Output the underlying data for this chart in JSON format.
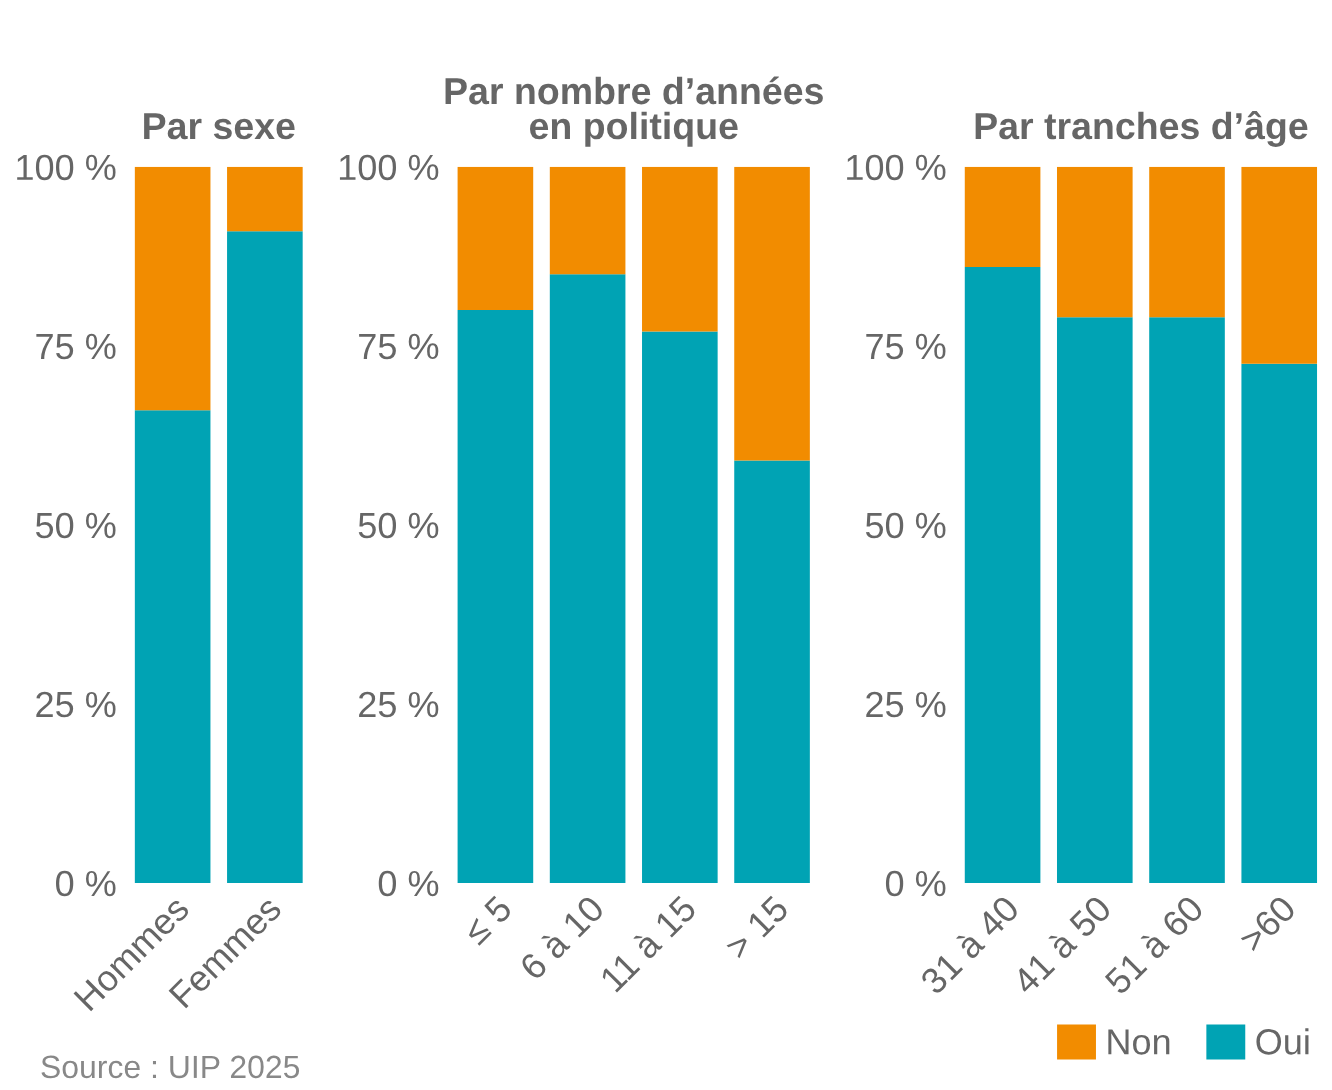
{
  "chart_data": [
    {
      "type": "bar",
      "title": "Par sexe",
      "categories": [
        "Hommes",
        "Femmes"
      ],
      "stacked": true,
      "series": [
        {
          "color": "#00a3b4",
          "values": [
            66,
            91
          ]
        },
        {
          "color": "#f28c00",
          "values": [
            34,
            9
          ]
        }
      ],
      "ylim": [
        0,
        100
      ],
      "yticks": [
        {
          "value": 0,
          "label": "0 %"
        },
        {
          "value": 25,
          "label": "25 %"
        },
        {
          "value": 50,
          "label": "50 %"
        },
        {
          "value": 75,
          "label": "75 %"
        },
        {
          "value": 100,
          "label": "100 %"
        }
      ],
      "annotations": [
        "Source : UIP 2025"
      ]
    },
    {
      "type": "bar",
      "title": "Par nombre d’années\nen politique",
      "categories": [
        "≤ 5",
        "6 à 10",
        "11 à 15",
        "> 15"
      ],
      "stacked": true,
      "series": [
        {
          "color": "#00a3b4",
          "values": [
            80,
            85,
            77,
            59
          ]
        },
        {
          "color": "#f28c00",
          "values": [
            20,
            15,
            23,
            41
          ]
        }
      ],
      "ylim": [
        0,
        100
      ],
      "yticks": [
        {
          "value": 0,
          "label": "0 %"
        },
        {
          "value": 25,
          "label": "25 %"
        },
        {
          "value": 50,
          "label": "50 %"
        },
        {
          "value": 75,
          "label": "75 %"
        },
        {
          "value": 100,
          "label": "100 %"
        }
      ]
    },
    {
      "type": "bar",
      "title": "Par tranches d’âge",
      "categories": [
        "31 à 40",
        "41 à 50",
        "51 à 60",
        ">60"
      ],
      "stacked": true,
      "series": [
        {
          "name": "Oui",
          "color": "#00a3b4",
          "values": [
            86,
            79,
            79,
            72.5
          ]
        },
        {
          "name": "Non",
          "color": "#f28c00",
          "values": [
            14,
            21,
            21,
            27.5
          ]
        }
      ],
      "ylim": [
        0,
        100
      ],
      "yticks": [
        {
          "value": 0,
          "label": "0 %"
        },
        {
          "value": 25,
          "label": "25 %"
        },
        {
          "value": 50,
          "label": "50 %"
        },
        {
          "value": 75,
          "label": "75 %"
        },
        {
          "value": 100,
          "label": "100 %"
        }
      ],
      "legend": "bottom right"
    }
  ]
}
